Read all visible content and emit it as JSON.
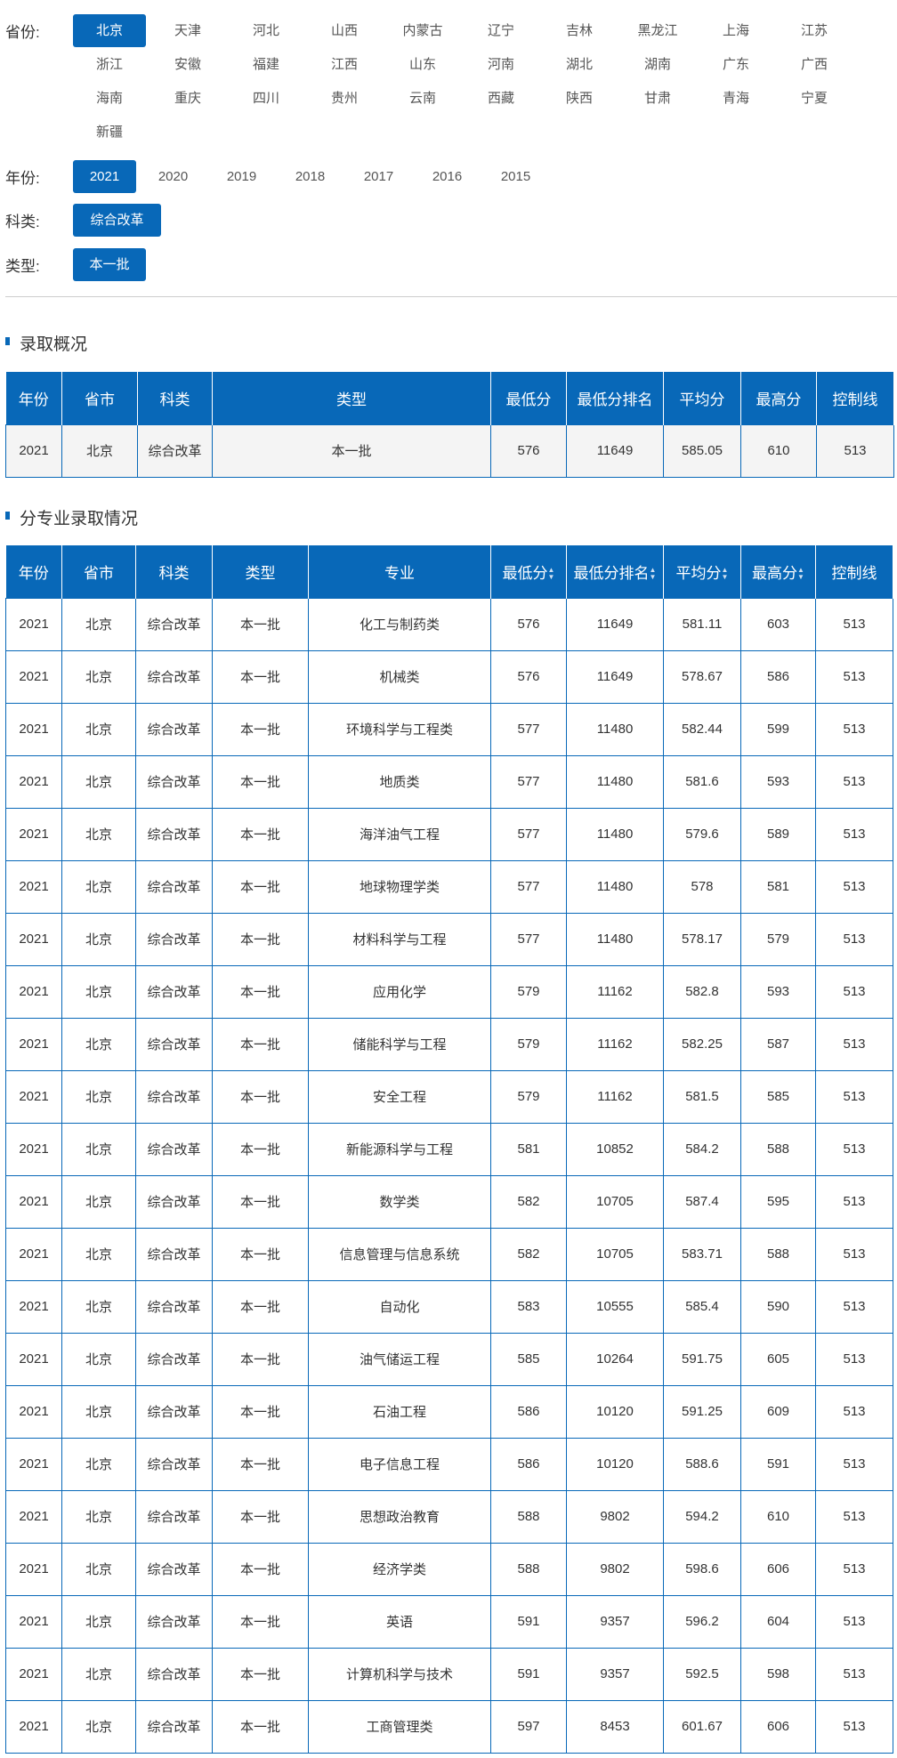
{
  "filters": {
    "province_label": "省份:",
    "provinces": [
      "北京",
      "天津",
      "河北",
      "山西",
      "内蒙古",
      "辽宁",
      "吉林",
      "黑龙江",
      "上海",
      "江苏",
      "浙江",
      "安徽",
      "福建",
      "江西",
      "山东",
      "河南",
      "湖北",
      "湖南",
      "广东",
      "广西",
      "海南",
      "重庆",
      "四川",
      "贵州",
      "云南",
      "西藏",
      "陕西",
      "甘肃",
      "青海",
      "宁夏",
      "新疆"
    ],
    "province_selected": "北京",
    "year_label": "年份:",
    "years": [
      "2021",
      "2020",
      "2019",
      "2018",
      "2017",
      "2016",
      "2015"
    ],
    "year_selected": "2021",
    "category_label": "科类:",
    "categories": [
      "综合改革"
    ],
    "type_label": "类型:",
    "types": [
      "本一批"
    ]
  },
  "colors": {
    "accent": "#0868b8"
  },
  "summary": {
    "title": "录取概况",
    "headers": [
      "年份",
      "省市",
      "科类",
      "类型",
      "最低分",
      "最低分排名",
      "平均分",
      "最高分",
      "控制线"
    ],
    "rows": [
      [
        "2021",
        "北京",
        "综合改革",
        "本一批",
        "576",
        "11649",
        "585.05",
        "610",
        "513"
      ]
    ]
  },
  "majors": {
    "title": "分专业录取情况",
    "headers": [
      "年份",
      "省市",
      "科类",
      "类型",
      "专业",
      "最低分",
      "最低分排名",
      "平均分",
      "最高分",
      "控制线"
    ],
    "sortable": [
      false,
      false,
      false,
      false,
      false,
      true,
      true,
      true,
      true,
      false
    ],
    "rows": [
      [
        "2021",
        "北京",
        "综合改革",
        "本一批",
        "化工与制药类",
        "576",
        "11649",
        "581.11",
        "603",
        "513"
      ],
      [
        "2021",
        "北京",
        "综合改革",
        "本一批",
        "机械类",
        "576",
        "11649",
        "578.67",
        "586",
        "513"
      ],
      [
        "2021",
        "北京",
        "综合改革",
        "本一批",
        "环境科学与工程类",
        "577",
        "11480",
        "582.44",
        "599",
        "513"
      ],
      [
        "2021",
        "北京",
        "综合改革",
        "本一批",
        "地质类",
        "577",
        "11480",
        "581.6",
        "593",
        "513"
      ],
      [
        "2021",
        "北京",
        "综合改革",
        "本一批",
        "海洋油气工程",
        "577",
        "11480",
        "579.6",
        "589",
        "513"
      ],
      [
        "2021",
        "北京",
        "综合改革",
        "本一批",
        "地球物理学类",
        "577",
        "11480",
        "578",
        "581",
        "513"
      ],
      [
        "2021",
        "北京",
        "综合改革",
        "本一批",
        "材料科学与工程",
        "577",
        "11480",
        "578.17",
        "579",
        "513"
      ],
      [
        "2021",
        "北京",
        "综合改革",
        "本一批",
        "应用化学",
        "579",
        "11162",
        "582.8",
        "593",
        "513"
      ],
      [
        "2021",
        "北京",
        "综合改革",
        "本一批",
        "储能科学与工程",
        "579",
        "11162",
        "582.25",
        "587",
        "513"
      ],
      [
        "2021",
        "北京",
        "综合改革",
        "本一批",
        "安全工程",
        "579",
        "11162",
        "581.5",
        "585",
        "513"
      ],
      [
        "2021",
        "北京",
        "综合改革",
        "本一批",
        "新能源科学与工程",
        "581",
        "10852",
        "584.2",
        "588",
        "513"
      ],
      [
        "2021",
        "北京",
        "综合改革",
        "本一批",
        "数学类",
        "582",
        "10705",
        "587.4",
        "595",
        "513"
      ],
      [
        "2021",
        "北京",
        "综合改革",
        "本一批",
        "信息管理与信息系统",
        "582",
        "10705",
        "583.71",
        "588",
        "513"
      ],
      [
        "2021",
        "北京",
        "综合改革",
        "本一批",
        "自动化",
        "583",
        "10555",
        "585.4",
        "590",
        "513"
      ],
      [
        "2021",
        "北京",
        "综合改革",
        "本一批",
        "油气储运工程",
        "585",
        "10264",
        "591.75",
        "605",
        "513"
      ],
      [
        "2021",
        "北京",
        "综合改革",
        "本一批",
        "石油工程",
        "586",
        "10120",
        "591.25",
        "609",
        "513"
      ],
      [
        "2021",
        "北京",
        "综合改革",
        "本一批",
        "电子信息工程",
        "586",
        "10120",
        "588.6",
        "591",
        "513"
      ],
      [
        "2021",
        "北京",
        "综合改革",
        "本一批",
        "思想政治教育",
        "588",
        "9802",
        "594.2",
        "610",
        "513"
      ],
      [
        "2021",
        "北京",
        "综合改革",
        "本一批",
        "经济学类",
        "588",
        "9802",
        "598.6",
        "606",
        "513"
      ],
      [
        "2021",
        "北京",
        "综合改革",
        "本一批",
        "英语",
        "591",
        "9357",
        "596.2",
        "604",
        "513"
      ],
      [
        "2021",
        "北京",
        "综合改革",
        "本一批",
        "计算机科学与技术",
        "591",
        "9357",
        "592.5",
        "598",
        "513"
      ],
      [
        "2021",
        "北京",
        "综合改革",
        "本一批",
        "工商管理类",
        "597",
        "8453",
        "601.67",
        "606",
        "513"
      ]
    ]
  }
}
